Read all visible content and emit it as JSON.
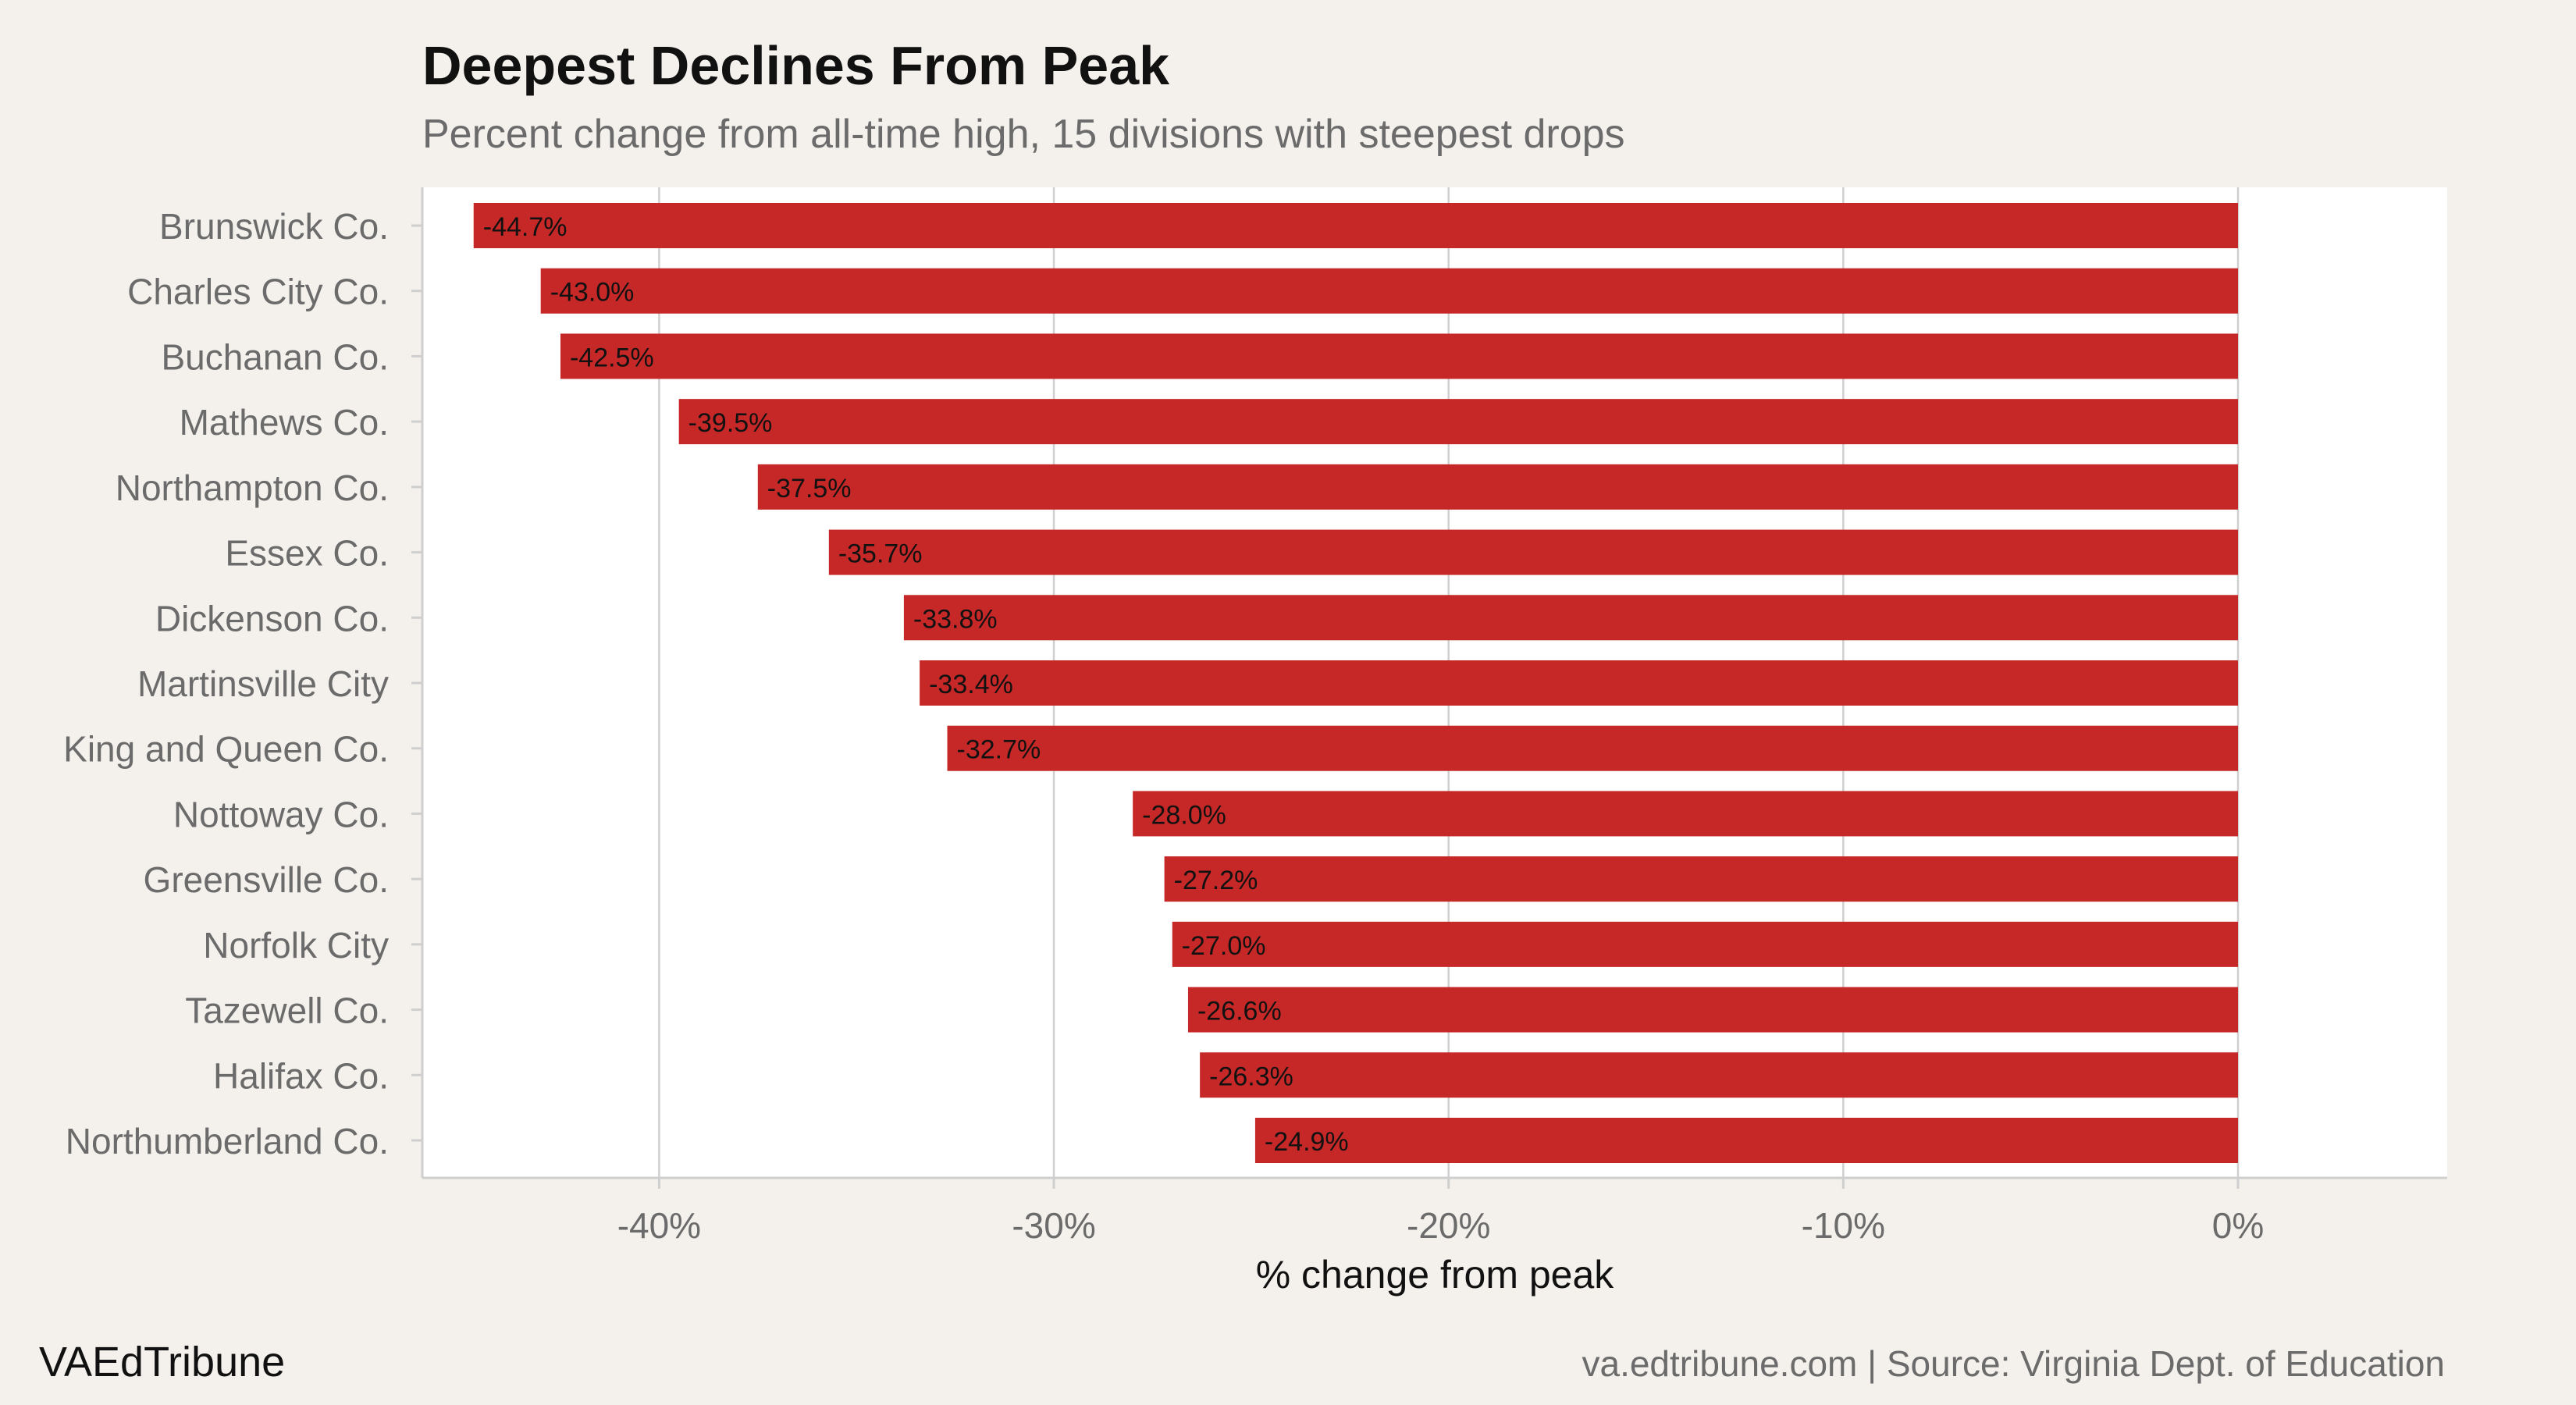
{
  "chart_data": {
    "type": "bar",
    "orientation": "horizontal",
    "title": "Deepest Declines From Peak",
    "subtitle": "Percent change from all-time high, 15 divisions with steepest drops",
    "xlabel": "% change from peak",
    "ylabel": "",
    "xlim": [
      -46,
      5.3
    ],
    "x_ticks": [
      -40,
      -30,
      -20,
      -10,
      0
    ],
    "x_tick_labels": [
      "-40%",
      "-30%",
      "-20%",
      "-10%",
      "0%"
    ],
    "grid": "vertical",
    "categories": [
      "Brunswick Co.",
      "Charles City Co.",
      "Buchanan Co.",
      "Mathews Co.",
      "Northampton Co.",
      "Essex Co.",
      "Dickenson Co.",
      "Martinsville City",
      "King and Queen Co.",
      "Nottoway Co.",
      "Greensville Co.",
      "Norfolk City",
      "Tazewell Co.",
      "Halifax Co.",
      "Northumberland Co."
    ],
    "values": [
      -44.7,
      -43.0,
      -42.5,
      -39.5,
      -37.5,
      -35.7,
      -33.8,
      -33.4,
      -32.7,
      -28.0,
      -27.2,
      -27.0,
      -26.6,
      -26.3,
      -24.9
    ],
    "data_labels": [
      "-44.7%",
      "-43.0%",
      "-42.5%",
      "-39.5%",
      "-37.5%",
      "-35.7%",
      "-33.8%",
      "-33.4%",
      "-32.7%",
      "-28.0%",
      "-27.2%",
      "-27.0%",
      "-26.6%",
      "-26.3%",
      "-24.9%"
    ],
    "bar_color": "#c62828"
  },
  "footer": {
    "brand": "VAEdTribune",
    "source": "va.edtribune.com | Source: Virginia Dept. of Education"
  },
  "colors": {
    "background": "#f4f1ec",
    "panel": "#ffffff",
    "grid": "#cfcfcf",
    "axis_text": "#6b6b6b"
  }
}
